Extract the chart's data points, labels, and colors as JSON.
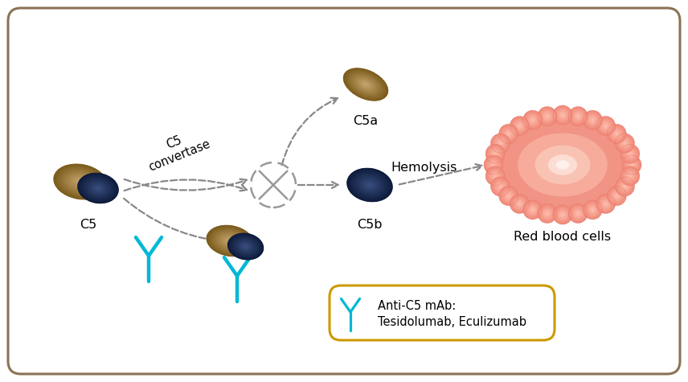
{
  "border_color": "#8B7355",
  "brown_light": "#c8a870",
  "brown_dark": "#7a5a1a",
  "brown_mid": "#a07828",
  "navy_light": "#3a5080",
  "navy_dark": "#0d1a3a",
  "navy_mid": "#1a2a5e",
  "rbc_main": "#f08878",
  "rbc_light": "#f8b0a0",
  "rbc_highlight": "#fde0d8",
  "rbc_center": "#fff0ec",
  "cyan_color": "#00b8d4",
  "arrow_color": "#888888",
  "legend_border": "#cc9900",
  "cross_color": "#999999",
  "c5_label": "C5",
  "c5a_label": "C5a",
  "c5b_label": "C5b",
  "hemolysis_label": "Hemolysis",
  "rbc_label": "Red blood cells",
  "convertase_label": "C5\nconvertase",
  "legend_text": "Anti-C5 mAb:\nTesidolumab, Eculizumab"
}
